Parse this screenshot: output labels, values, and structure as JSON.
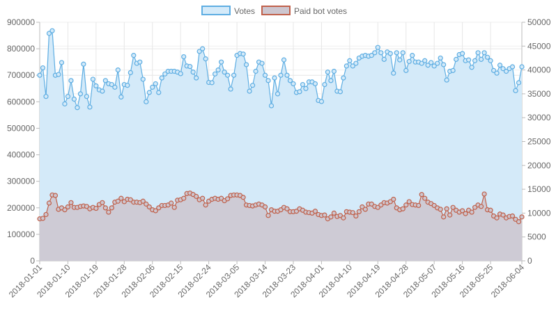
{
  "chart_data": {
    "type": "line",
    "legend_position": "top",
    "grid": true,
    "x": [
      "2018-01-01",
      "2018-01-02",
      "2018-01-03",
      "2018-01-04",
      "2018-01-05",
      "2018-01-06",
      "2018-01-07",
      "2018-01-08",
      "2018-01-09",
      "2018-01-10",
      "2018-01-11",
      "2018-01-12",
      "2018-01-13",
      "2018-01-14",
      "2018-01-15",
      "2018-01-16",
      "2018-01-17",
      "2018-01-18",
      "2018-01-19",
      "2018-01-20",
      "2018-01-21",
      "2018-01-22",
      "2018-01-23",
      "2018-01-24",
      "2018-01-25",
      "2018-01-26",
      "2018-01-27",
      "2018-01-28",
      "2018-01-29",
      "2018-01-30",
      "2018-01-31",
      "2018-02-01",
      "2018-02-02",
      "2018-02-03",
      "2018-02-04",
      "2018-02-05",
      "2018-02-06",
      "2018-02-07",
      "2018-02-08",
      "2018-02-09",
      "2018-02-10",
      "2018-02-11",
      "2018-02-12",
      "2018-02-13",
      "2018-02-14",
      "2018-02-15",
      "2018-02-16",
      "2018-02-17",
      "2018-02-18",
      "2018-02-19",
      "2018-02-20",
      "2018-02-21",
      "2018-02-22",
      "2018-02-23",
      "2018-02-24",
      "2018-02-25",
      "2018-02-26",
      "2018-02-27",
      "2018-02-28",
      "2018-03-01",
      "2018-03-02",
      "2018-03-03",
      "2018-03-04",
      "2018-03-05",
      "2018-03-06",
      "2018-03-07",
      "2018-03-08",
      "2018-03-09",
      "2018-03-10",
      "2018-03-11",
      "2018-03-12",
      "2018-03-13",
      "2018-03-14",
      "2018-03-15",
      "2018-03-16",
      "2018-03-17",
      "2018-03-18",
      "2018-03-19",
      "2018-03-20",
      "2018-03-21",
      "2018-03-22",
      "2018-03-23",
      "2018-03-24",
      "2018-03-25",
      "2018-03-26",
      "2018-03-27",
      "2018-03-28",
      "2018-03-29",
      "2018-03-30",
      "2018-03-31",
      "2018-04-01",
      "2018-04-02",
      "2018-04-03",
      "2018-04-04",
      "2018-04-05",
      "2018-04-06",
      "2018-04-07",
      "2018-04-08",
      "2018-04-09",
      "2018-04-10",
      "2018-04-11",
      "2018-04-12",
      "2018-04-13",
      "2018-04-14",
      "2018-04-15",
      "2018-04-16",
      "2018-04-17",
      "2018-04-18",
      "2018-04-19",
      "2018-04-20",
      "2018-04-21",
      "2018-04-22",
      "2018-04-23",
      "2018-04-24",
      "2018-04-25",
      "2018-04-26",
      "2018-04-27",
      "2018-04-28",
      "2018-04-29",
      "2018-04-30",
      "2018-05-01",
      "2018-05-02",
      "2018-05-03",
      "2018-05-04",
      "2018-05-05",
      "2018-05-06",
      "2018-05-07",
      "2018-05-08",
      "2018-05-09",
      "2018-05-10",
      "2018-05-11",
      "2018-05-12",
      "2018-05-13",
      "2018-05-14",
      "2018-05-15",
      "2018-05-16",
      "2018-05-17",
      "2018-05-18",
      "2018-05-19",
      "2018-05-20",
      "2018-05-21",
      "2018-05-22",
      "2018-05-23",
      "2018-05-24",
      "2018-05-25",
      "2018-05-26",
      "2018-05-27",
      "2018-05-28",
      "2018-05-29",
      "2018-05-30",
      "2018-05-31",
      "2018-06-01",
      "2018-06-02",
      "2018-06-03",
      "2018-06-04"
    ],
    "x_tick_labels": [
      "2018-01-01",
      "2018-01-10",
      "2018-01-19",
      "2018-01-28",
      "2018-02-06",
      "2018-02-15",
      "2018-02-24",
      "2018-03-05",
      "2018-03-14",
      "2018-03-23",
      "2018-04-01",
      "2018-04-10",
      "2018-04-19",
      "2018-04-28",
      "2018-05-07",
      "2018-05-16",
      "2018-05-25",
      "2018-06-04"
    ],
    "y_left": {
      "min": 0,
      "max": 900000,
      "ticks": [
        0,
        100000,
        200000,
        300000,
        400000,
        500000,
        600000,
        700000,
        800000,
        900000
      ]
    },
    "y_right": {
      "min": 0,
      "max": 50000,
      "ticks": [
        0,
        5000,
        10000,
        15000,
        20000,
        25000,
        30000,
        35000,
        40000,
        45000,
        50000
      ]
    },
    "series": [
      {
        "name": "Votes",
        "axis": "left",
        "color": "#5dade2",
        "fill": "#d4eaf9",
        "values": [
          700000,
          728000,
          620000,
          858000,
          868000,
          700000,
          703000,
          748000,
          592000,
          620000,
          680000,
          610000,
          578000,
          630000,
          742000,
          620000,
          580000,
          685000,
          660000,
          645000,
          640000,
          680000,
          668000,
          665000,
          655000,
          720000,
          618000,
          665000,
          662000,
          710000,
          775000,
          745000,
          750000,
          685000,
          600000,
          635000,
          655000,
          668000,
          635000,
          690000,
          705000,
          715000,
          715000,
          715000,
          712000,
          706000,
          770000,
          735000,
          733000,
          712000,
          690000,
          790000,
          800000,
          762000,
          673000,
          672000,
          705000,
          720000,
          750000,
          712000,
          700000,
          648000,
          700000,
          775000,
          782000,
          780000,
          740000,
          640000,
          662000,
          715000,
          750000,
          745000,
          700000,
          680000,
          585000,
          690000,
          630000,
          700000,
          758000,
          700000,
          680000,
          668000,
          635000,
          638000,
          665000,
          650000,
          675000,
          675000,
          668000,
          605000,
          601000,
          665000,
          712000,
          680000,
          715000,
          640000,
          638000,
          690000,
          735000,
          755000,
          735000,
          745000,
          765000,
          772000,
          775000,
          772000,
          775000,
          785000,
          805000,
          785000,
          760000,
          788000,
          782000,
          708000,
          785000,
          758000,
          785000,
          718000,
          752000,
          775000,
          750000,
          750000,
          745000,
          755000,
          738000,
          748000,
          735000,
          745000,
          765000,
          740000,
          682000,
          715000,
          718000,
          760000,
          778000,
          782000,
          755000,
          758000,
          730000,
          755000,
          785000,
          760000,
          785000,
          768000,
          755000,
          718000,
          708000,
          738000,
          725000,
          715000,
          725000,
          732000,
          642000,
          672000,
          732000
        ]
      },
      {
        "name": "Paid bot votes",
        "axis": "right",
        "color": "#c0604a",
        "fill": "#cdc6cf",
        "values": [
          8800,
          8900,
          9700,
          12100,
          13800,
          13700,
          10800,
          11100,
          10700,
          11300,
          12200,
          11200,
          11200,
          11400,
          11500,
          11400,
          10900,
          11200,
          11000,
          11800,
          12200,
          11100,
          10200,
          11100,
          12300,
          12500,
          13100,
          12400,
          12900,
          12800,
          12300,
          12300,
          12200,
          12500,
          11900,
          11300,
          10700,
          10500,
          11100,
          11600,
          11600,
          11700,
          12100,
          11200,
          12700,
          12800,
          13100,
          14100,
          14200,
          13900,
          13500,
          12800,
          13100,
          11700,
          12500,
          12900,
          13100,
          12900,
          13100,
          12600,
          13000,
          13700,
          13800,
          13800,
          13700,
          13300,
          11700,
          11600,
          11500,
          11700,
          11900,
          11700,
          11300,
          9500,
          10700,
          10400,
          10400,
          10700,
          11200,
          10900,
          10300,
          10300,
          10400,
          10900,
          10600,
          10200,
          10100,
          10000,
          10400,
          9700,
          9500,
          9600,
          8800,
          9200,
          10000,
          9300,
          9500,
          9000,
          10300,
          10200,
          10100,
          9400,
          10300,
          11300,
          10800,
          11900,
          11900,
          11400,
          11200,
          11700,
          12200,
          12100,
          12400,
          12900,
          11100,
          10700,
          10900,
          11700,
          12400,
          11800,
          11700,
          11600,
          13900,
          13100,
          12300,
          12000,
          11600,
          11100,
          10800,
          9200,
          10900,
          9600,
          11200,
          10600,
          10200,
          10500,
          9900,
          10600,
          10200,
          11200,
          11700,
          11400,
          14000,
          10700,
          10600,
          9400,
          9000,
          9800,
          9600,
          9000,
          9300,
          9400,
          8700,
          8200,
          9200
        ]
      }
    ]
  }
}
